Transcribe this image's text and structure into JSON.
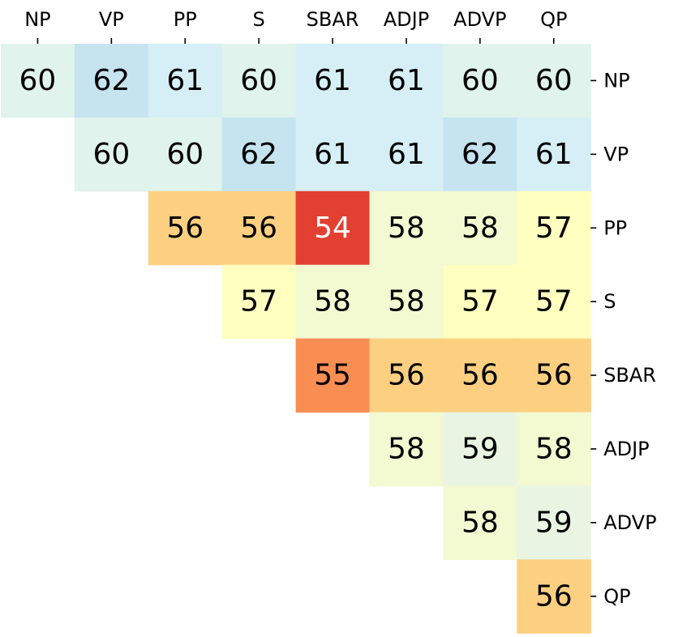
{
  "chart_data": {
    "type": "heatmap",
    "title": "",
    "xlabel": "",
    "ylabel": "",
    "x_labels": [
      "NP",
      "VP",
      "PP",
      "S",
      "SBAR",
      "ADJP",
      "ADVP",
      "QP"
    ],
    "y_labels": [
      "NP",
      "VP",
      "PP",
      "S",
      "SBAR",
      "ADJP",
      "ADVP",
      "QP"
    ],
    "x_tick_position": "top",
    "y_tick_position": "right",
    "layout": "upper-triangular",
    "colormap": "RdYlBu",
    "value_range": [
      54,
      62
    ],
    "values": [
      [
        60,
        62,
        61,
        60,
        61,
        61,
        60,
        60
      ],
      [
        null,
        60,
        60,
        62,
        61,
        61,
        62,
        61
      ],
      [
        null,
        null,
        56,
        56,
        54,
        58,
        58,
        57
      ],
      [
        null,
        null,
        null,
        57,
        58,
        58,
        57,
        57
      ],
      [
        null,
        null,
        null,
        null,
        55,
        56,
        56,
        56
      ],
      [
        null,
        null,
        null,
        null,
        null,
        58,
        59,
        58
      ],
      [
        null,
        null,
        null,
        null,
        null,
        null,
        58,
        59
      ],
      [
        null,
        null,
        null,
        null,
        null,
        null,
        null,
        56
      ]
    ],
    "colors": {
      "54": "#e34032",
      "55": "#f98e52",
      "56": "#fdd081",
      "57": "#ffffbf",
      "58": "#f3f9d1",
      "59": "#e9f5e2",
      "60": "#e0f3ec",
      "61": "#d6eff6",
      "62": "#c6e3f0"
    },
    "text_colors": {
      "dark": "#000000",
      "light": "#ffffff"
    }
  }
}
